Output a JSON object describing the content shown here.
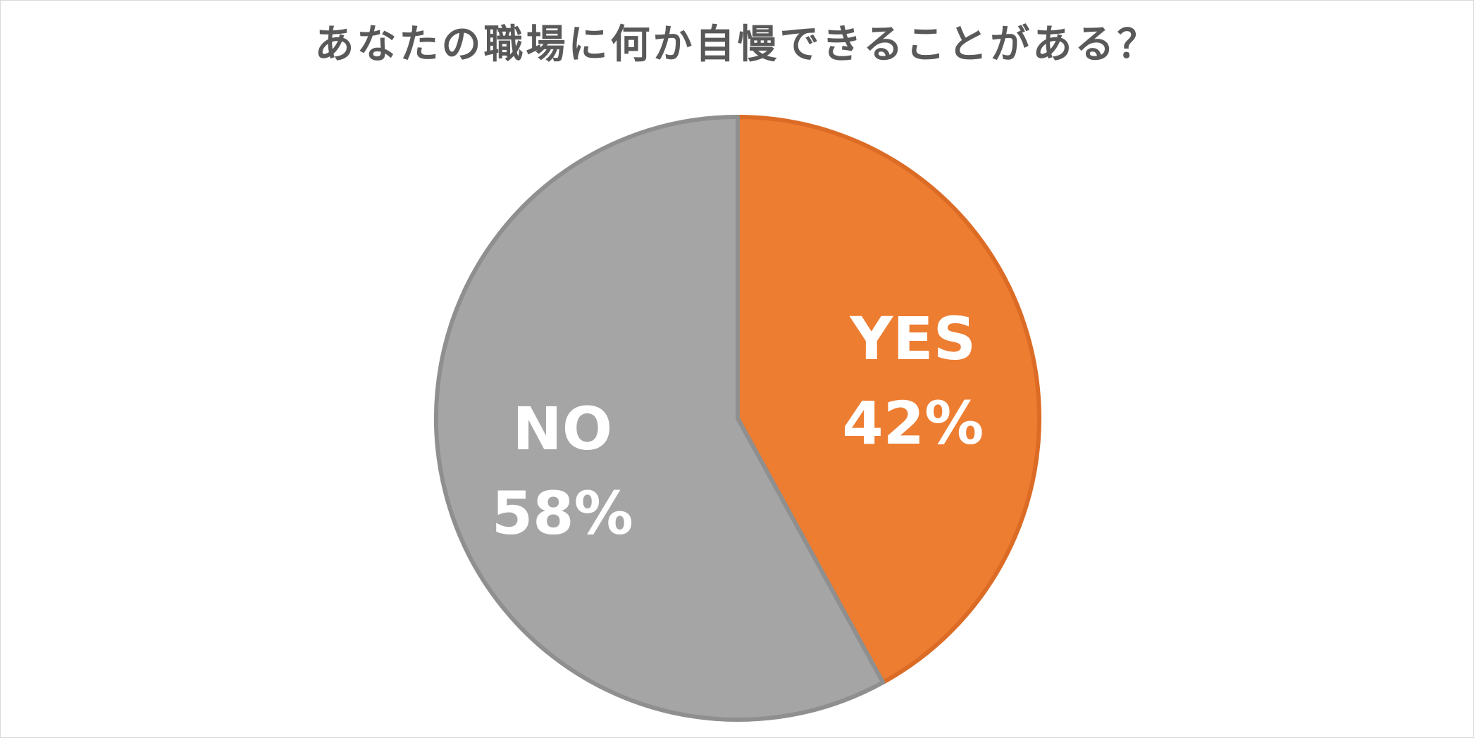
{
  "chart_data": {
    "type": "pie",
    "title": "あなたの職場に何か自慢できることがある？",
    "slices": [
      {
        "name": "YES",
        "value": 42,
        "label": "42%",
        "color": "#ED7D31",
        "stroke": "#DC6C25"
      },
      {
        "name": "NO",
        "value": 58,
        "label": "58%",
        "color": "#A5A5A5",
        "stroke": "#8F8F8F"
      }
    ],
    "start_angle_deg": 0,
    "direction": "clockwise",
    "legend": "none"
  }
}
